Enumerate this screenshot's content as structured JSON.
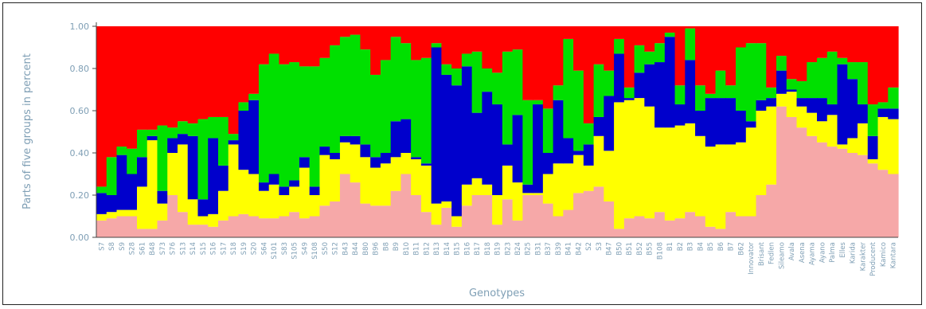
{
  "chart_data": {
    "type": "bar",
    "stacked": true,
    "title": "",
    "xlabel": "Genotypes",
    "ylabel": "Parts of five groups in percent",
    "ylim": [
      0,
      1
    ],
    "yticks": [
      "0.00",
      "0.20",
      "0.40",
      "0.60",
      "0.80",
      "1.00"
    ],
    "grid": false,
    "legend": "none",
    "categories": [
      "S7",
      "S8",
      "S9",
      "S28",
      "S61",
      "B48",
      "S73",
      "S76",
      "S13",
      "S14",
      "S15",
      "S16",
      "S17",
      "S18",
      "S19",
      "S20",
      "S64",
      "S101",
      "S83",
      "S105",
      "S49",
      "S108",
      "S50",
      "S12",
      "B43",
      "B44",
      "B80",
      "B96",
      "B8",
      "B9",
      "B10",
      "B11",
      "B12",
      "B13",
      "B14",
      "B15",
      "B16",
      "B17",
      "B18",
      "B19",
      "B23",
      "B24",
      "B25",
      "B31",
      "B37",
      "B39",
      "B41",
      "B42",
      "S2",
      "S3",
      "B47",
      "B50",
      "B51",
      "B52",
      "B55",
      "B108",
      "B1",
      "B2",
      "B3",
      "B4",
      "B5",
      "B6",
      "B7",
      "B62",
      "Innovator",
      "Brisant",
      "Fedlen",
      "Sileamo",
      "Avala",
      "Asena",
      "Ayama",
      "Ayano",
      "Palma",
      "Elles",
      "Karida",
      "Karakter",
      "Producent",
      "Kamico",
      "Kantara"
    ],
    "series_order": [
      "pink",
      "yellow",
      "blue",
      "green",
      "red"
    ],
    "colors": {
      "pink": "#f6a8a8",
      "yellow": "#ffff00",
      "blue": "#0000cc",
      "green": "#00e000",
      "red": "#ff0000"
    },
    "series": [
      {
        "key": "pink",
        "values": [
          0.08,
          0.09,
          0.1,
          0.1,
          0.04,
          0.04,
          0.08,
          0.2,
          0.12,
          0.06,
          0.06,
          0.05,
          0.08,
          0.1,
          0.11,
          0.1,
          0.09,
          0.09,
          0.1,
          0.12,
          0.09,
          0.1,
          0.15,
          0.17,
          0.3,
          0.26,
          0.16,
          0.15,
          0.15,
          0.22,
          0.3,
          0.2,
          0.12,
          0.06,
          0.14,
          0.05,
          0.15,
          0.2,
          0.2,
          0.06,
          0.18,
          0.08,
          0.2,
          0.2,
          0.16,
          0.1,
          0.13,
          0.21,
          0.22,
          0.24,
          0.17,
          0.04,
          0.09,
          0.1,
          0.09,
          0.12,
          0.08,
          0.09,
          0.12,
          0.1,
          0.05,
          0.04,
          0.12,
          0.1,
          0.1,
          0.2,
          0.25,
          0.62,
          0.57,
          0.52,
          0.48,
          0.45,
          0.43,
          0.42,
          0.4,
          0.39,
          0.35,
          0.32,
          0.3
        ]
      },
      {
        "key": "yellow",
        "values": [
          0.03,
          0.03,
          0.03,
          0.03,
          0.2,
          0.42,
          0.08,
          0.2,
          0.32,
          0.12,
          0.04,
          0.06,
          0.14,
          0.34,
          0.21,
          0.2,
          0.13,
          0.16,
          0.1,
          0.12,
          0.24,
          0.1,
          0.24,
          0.2,
          0.15,
          0.18,
          0.22,
          0.18,
          0.2,
          0.16,
          0.1,
          0.17,
          0.22,
          0.1,
          0.03,
          0.05,
          0.1,
          0.08,
          0.05,
          0.14,
          0.16,
          0.18,
          0.01,
          0.01,
          0.14,
          0.25,
          0.22,
          0.18,
          0.12,
          0.24,
          0.24,
          0.6,
          0.56,
          0.56,
          0.53,
          0.4,
          0.44,
          0.44,
          0.42,
          0.38,
          0.38,
          0.4,
          0.32,
          0.35,
          0.42,
          0.4,
          0.37,
          0.06,
          0.12,
          0.1,
          0.11,
          0.1,
          0.15,
          0.02,
          0.07,
          0.15,
          0.02,
          0.25,
          0.26
        ]
      },
      {
        "key": "blue",
        "values": [
          0.1,
          0.08,
          0.26,
          0.17,
          0.14,
          0.02,
          0.06,
          0.07,
          0.05,
          0.3,
          0.08,
          0.36,
          0.12,
          0.02,
          0.28,
          0.35,
          0.04,
          0.05,
          0.04,
          0.03,
          0.05,
          0.04,
          0.04,
          0.03,
          0.03,
          0.04,
          0.06,
          0.05,
          0.05,
          0.17,
          0.16,
          0.01,
          0.01,
          0.74,
          0.6,
          0.62,
          0.56,
          0.31,
          0.44,
          0.43,
          0.1,
          0.32,
          0.04,
          0.42,
          0.1,
          0.3,
          0.12,
          0.02,
          0.1,
          0.09,
          0.26,
          0.23,
          0.01,
          0.12,
          0.2,
          0.31,
          0.43,
          0.1,
          0.3,
          0.12,
          0.23,
          0.22,
          0.22,
          0.15,
          0.03,
          0.05,
          0.04,
          0.11,
          0.01,
          0.04,
          0.07,
          0.11,
          0.05,
          0.38,
          0.28,
          0.09,
          0.11,
          0.04,
          0.05
        ]
      },
      {
        "key": "green",
        "values": [
          0.03,
          0.18,
          0.04,
          0.12,
          0.13,
          0.03,
          0.31,
          0.05,
          0.06,
          0.06,
          0.38,
          0.1,
          0.23,
          0.03,
          0.04,
          0.03,
          0.56,
          0.57,
          0.58,
          0.56,
          0.43,
          0.57,
          0.42,
          0.51,
          0.47,
          0.48,
          0.45,
          0.39,
          0.44,
          0.4,
          0.36,
          0.46,
          0.5,
          0.02,
          0.05,
          0.08,
          0.06,
          0.29,
          0.11,
          0.15,
          0.44,
          0.31,
          0.4,
          0.02,
          0.21,
          0.07,
          0.47,
          0.38,
          0.1,
          0.25,
          0.12,
          0.07,
          0.05,
          0.13,
          0.06,
          0.09,
          0.02,
          0.09,
          0.15,
          0.12,
          0.02,
          0.13,
          0.06,
          0.3,
          0.37,
          0.27,
          0.05,
          0.07,
          0.05,
          0.08,
          0.17,
          0.19,
          0.25,
          0.03,
          0.08,
          0.2,
          0.15,
          0.03,
          0.1
        ]
      },
      {
        "key": "red",
        "values": [
          0.76,
          0.62,
          0.57,
          0.58,
          0.49,
          0.49,
          0.47,
          0.48,
          0.45,
          0.46,
          0.44,
          0.43,
          0.43,
          0.51,
          0.36,
          0.32,
          0.18,
          0.13,
          0.18,
          0.17,
          0.19,
          0.19,
          0.15,
          0.09,
          0.05,
          0.04,
          0.11,
          0.23,
          0.16,
          0.05,
          0.08,
          0.16,
          0.15,
          0.08,
          0.18,
          0.2,
          0.13,
          0.12,
          0.2,
          0.22,
          0.12,
          0.11,
          0.35,
          0.35,
          0.39,
          0.28,
          0.06,
          0.21,
          0.46,
          0.18,
          0.21,
          0.06,
          0.29,
          0.09,
          0.12,
          0.08,
          0.03,
          0.28,
          0.01,
          0.28,
          0.32,
          0.21,
          0.28,
          0.1,
          0.08,
          0.08,
          0.29,
          0.14,
          0.25,
          0.26,
          0.17,
          0.15,
          0.12,
          0.15,
          0.17,
          0.17,
          0.37,
          0.36,
          0.29
        ]
      }
    ]
  }
}
